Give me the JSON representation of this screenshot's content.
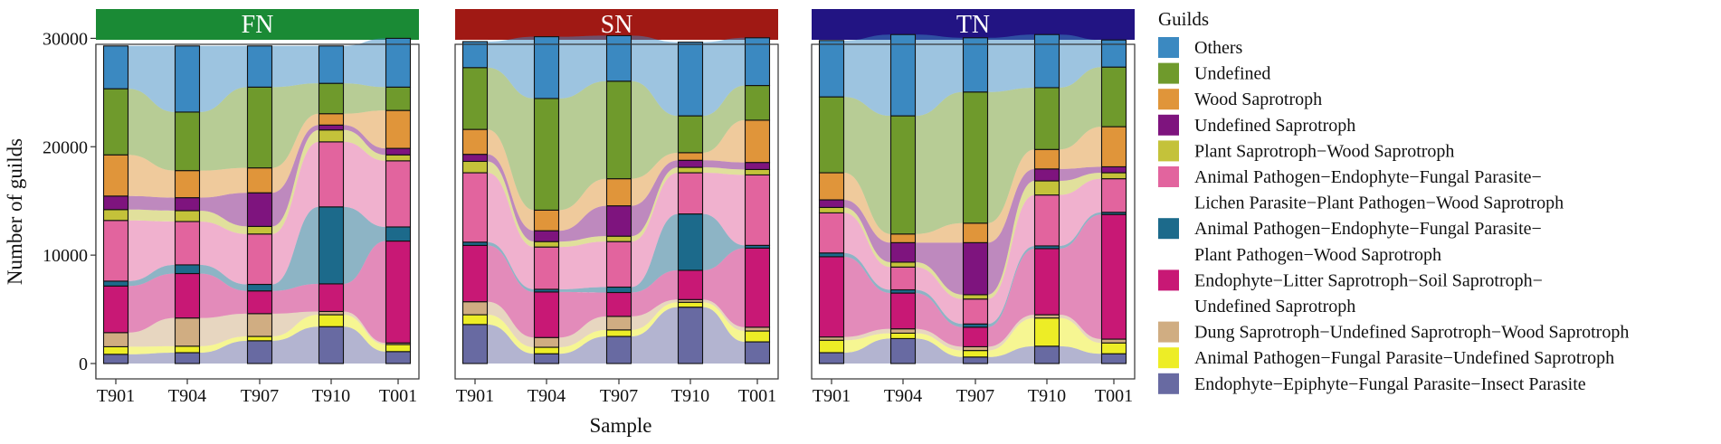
{
  "chart_data": {
    "type": "stacked-bar-alluvial",
    "ylabel": "Number of guilds",
    "xlabel": "Sample",
    "ylim": [
      0,
      30000
    ],
    "yticks": [
      0,
      10000,
      20000,
      30000
    ],
    "yticklabels": [
      "0",
      "10000",
      "20000",
      "30000"
    ],
    "samples": [
      "T901",
      "T904",
      "T907",
      "T910",
      "T001"
    ],
    "legend_title": "Guilds",
    "legend_position": "right",
    "legend_lines": [
      [
        "Others"
      ],
      [
        "Undefined"
      ],
      [
        "Wood Saprotroph"
      ],
      [
        "Undefined Saprotroph"
      ],
      [
        "Plant Saprotroph−Wood Saprotroph"
      ],
      [
        "Animal Pathogen−Endophyte−Fungal Parasite−",
        "Lichen Parasite−Plant Pathogen−Wood Saprotroph"
      ],
      [
        "Animal Pathogen−Endophyte−Fungal Parasite−",
        "Plant Pathogen−Wood Saprotroph"
      ],
      [
        "Endophyte−Litter Saprotroph−Soil Saprotroph−",
        "Undefined Saprotroph"
      ],
      [
        "Dung Saprotroph−Undefined Saprotroph−Wood Saprotroph"
      ],
      [
        "Animal Pathogen−Fungal Parasite−Undefined Saprotroph"
      ],
      [
        "Endophyte−Epiphyte−Fungal Parasite−Insect Parasite"
      ]
    ],
    "guilds": [
      "Others",
      "Undefined",
      "Wood Saprotroph",
      "Undefined Saprotroph",
      "Plant Saprotroph−Wood Saprotroph",
      "Animal Pathogen−Endophyte−Fungal Parasite−Lichen Parasite−Plant Pathogen−Wood Saprotroph",
      "Animal Pathogen−Endophyte−Fungal Parasite−Plant Pathogen−Wood Saprotroph",
      "Endophyte−Litter Saprotroph−Soil Saprotroph−Undefined Saprotroph",
      "Dung Saprotroph−Undefined Saprotroph−Wood Saprotroph",
      "Animal Pathogen−Fungal Parasite−Undefined Saprotroph",
      "Endophyte−Epiphyte−Fungal Parasite−Insect Parasite"
    ],
    "colors": [
      "#3b89c1",
      "#6f9a2c",
      "#e0953a",
      "#7e147e",
      "#c4c23a",
      "#e2649e",
      "#1c6a8b",
      "#c81875",
      "#d0ad82",
      "#eded26",
      "#686aa2"
    ],
    "panels": [
      {
        "title": "FN",
        "color": "#1a8a35",
        "values": [
          [
            3950,
            6100,
            3800,
            3450,
            4500
          ],
          [
            6100,
            5400,
            7450,
            2800,
            2150
          ],
          [
            3800,
            2500,
            2300,
            1050,
            3500
          ],
          [
            1250,
            1200,
            3100,
            450,
            600
          ],
          [
            1000,
            1000,
            700,
            1100,
            550
          ],
          [
            5600,
            4000,
            4650,
            6000,
            6100
          ],
          [
            450,
            800,
            600,
            7100,
            1300
          ],
          [
            4300,
            4100,
            2100,
            2550,
            9400
          ],
          [
            1300,
            2600,
            2100,
            300,
            150
          ],
          [
            700,
            600,
            400,
            1100,
            650
          ],
          [
            850,
            1000,
            2100,
            3400,
            1100
          ]
        ]
      },
      {
        "title": "SN",
        "color": "#a01914",
        "values": [
          [
            2400,
            5700,
            4200,
            6800,
            4400
          ],
          [
            5700,
            10300,
            9000,
            3400,
            3200
          ],
          [
            2300,
            1900,
            2500,
            700,
            3900
          ],
          [
            650,
            1000,
            2800,
            650,
            650
          ],
          [
            1050,
            500,
            500,
            500,
            500
          ],
          [
            6400,
            3900,
            4200,
            3800,
            6500
          ],
          [
            300,
            250,
            500,
            5200,
            250
          ],
          [
            5200,
            4200,
            2200,
            2700,
            7300
          ],
          [
            1200,
            900,
            1250,
            250,
            350
          ],
          [
            900,
            600,
            600,
            450,
            1000
          ],
          [
            3600,
            900,
            2500,
            5200,
            2000
          ]
        ]
      },
      {
        "title": "TN",
        "color": "#221483",
        "values": [
          [
            5200,
            7500,
            5000,
            4900,
            2500
          ],
          [
            7000,
            10900,
            12100,
            5700,
            5500
          ],
          [
            2500,
            800,
            1800,
            1800,
            3700
          ],
          [
            700,
            1800,
            4800,
            1100,
            550
          ],
          [
            500,
            450,
            400,
            1300,
            550
          ],
          [
            3700,
            2100,
            2300,
            4700,
            3100
          ],
          [
            350,
            300,
            300,
            250,
            200
          ],
          [
            7400,
            3300,
            1800,
            6100,
            11500
          ],
          [
            300,
            400,
            350,
            300,
            350
          ],
          [
            1150,
            500,
            600,
            2600,
            1000
          ],
          [
            1000,
            2300,
            600,
            1600,
            900
          ]
        ]
      }
    ]
  }
}
